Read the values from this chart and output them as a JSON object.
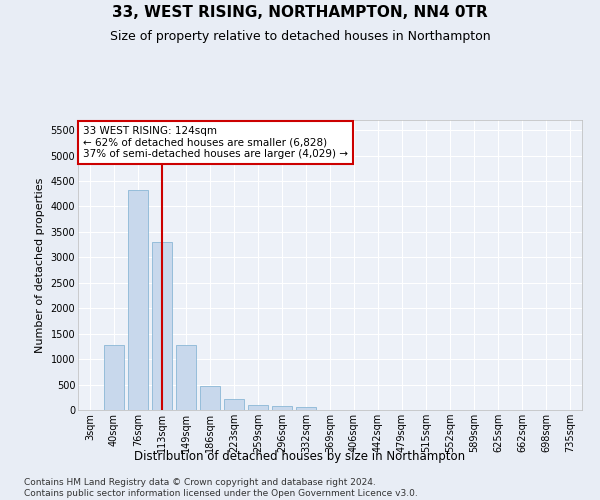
{
  "title": "33, WEST RISING, NORTHAMPTON, NN4 0TR",
  "subtitle": "Size of property relative to detached houses in Northampton",
  "xlabel": "Distribution of detached houses by size in Northampton",
  "ylabel": "Number of detached properties",
  "bar_color": "#c8d8ec",
  "bar_edge_color": "#7aaed0",
  "vline_color": "#cc0000",
  "vline_x_index": 3,
  "annotation_line1": "33 WEST RISING: 124sqm",
  "annotation_line2": "← 62% of detached houses are smaller (6,828)",
  "annotation_line3": "37% of semi-detached houses are larger (4,029) →",
  "annotation_box_color": "#ffffff",
  "annotation_box_edge": "#cc0000",
  "categories": [
    "3sqm",
    "40sqm",
    "76sqm",
    "113sqm",
    "149sqm",
    "186sqm",
    "223sqm",
    "259sqm",
    "296sqm",
    "332sqm",
    "369sqm",
    "406sqm",
    "442sqm",
    "479sqm",
    "515sqm",
    "552sqm",
    "589sqm",
    "625sqm",
    "662sqm",
    "698sqm",
    "735sqm"
  ],
  "values": [
    0,
    1270,
    4330,
    3300,
    1280,
    480,
    220,
    90,
    70,
    55,
    0,
    0,
    0,
    0,
    0,
    0,
    0,
    0,
    0,
    0,
    0
  ],
  "ylim": [
    0,
    5700
  ],
  "yticks": [
    0,
    500,
    1000,
    1500,
    2000,
    2500,
    3000,
    3500,
    4000,
    4500,
    5000,
    5500
  ],
  "footer": "Contains HM Land Registry data © Crown copyright and database right 2024.\nContains public sector information licensed under the Open Government Licence v3.0.",
  "bg_color": "#e8edf5",
  "plot_bg_color": "#edf1f8",
  "grid_color": "#ffffff",
  "title_fontsize": 11,
  "subtitle_fontsize": 9,
  "xlabel_fontsize": 8.5,
  "ylabel_fontsize": 8,
  "tick_fontsize": 7,
  "annotation_fontsize": 7.5,
  "footer_fontsize": 6.5
}
